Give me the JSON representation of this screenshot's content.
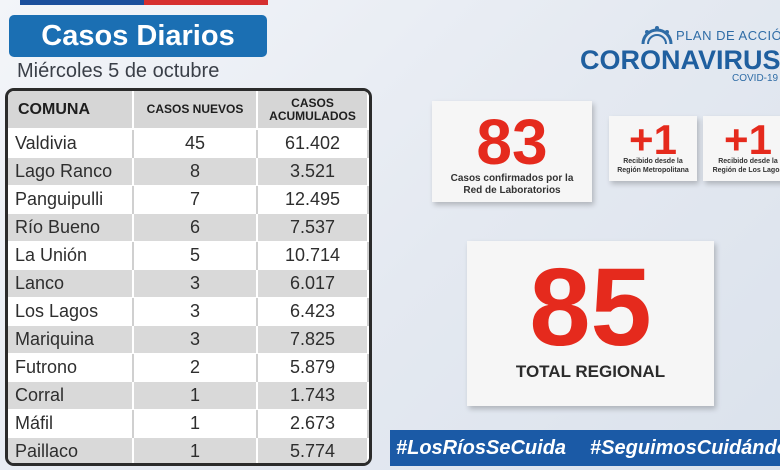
{
  "header": {
    "title": "Casos Diarios",
    "date": "Miércoles 5 de octubre"
  },
  "table": {
    "headers": {
      "comuna": "COMUNA",
      "nuevos": "CASOS NUEVOS",
      "acumulados_1": "CASOS",
      "acumulados_2": "ACUMULADOS"
    },
    "rows": [
      {
        "comuna": "Valdivia",
        "nuevos": "45",
        "acumulados": "61.402"
      },
      {
        "comuna": "Lago Ranco",
        "nuevos": "8",
        "acumulados": "3.521"
      },
      {
        "comuna": "Panguipulli",
        "nuevos": "7",
        "acumulados": "12.495"
      },
      {
        "comuna": "Río Bueno",
        "nuevos": "6",
        "acumulados": "7.537"
      },
      {
        "comuna": "La Unión",
        "nuevos": "5",
        "acumulados": "10.714"
      },
      {
        "comuna": "Lanco",
        "nuevos": "3",
        "acumulados": "6.017"
      },
      {
        "comuna": "Los Lagos",
        "nuevos": "3",
        "acumulados": "6.423"
      },
      {
        "comuna": "Mariquina",
        "nuevos": "3",
        "acumulados": "7.825"
      },
      {
        "comuna": "Futrono",
        "nuevos": "2",
        "acumulados": "5.879"
      },
      {
        "comuna": "Corral",
        "nuevos": "1",
        "acumulados": "1.743"
      },
      {
        "comuna": "Máfil",
        "nuevos": "1",
        "acumulados": "2.673"
      },
      {
        "comuna": "Paillaco",
        "nuevos": "1",
        "acumulados": "5.774"
      }
    ]
  },
  "logo": {
    "plan": "PLAN DE ACCIÓN",
    "name": "CORONAVIRUS",
    "sub": "COVID-19"
  },
  "stats": {
    "lab": {
      "value": "83",
      "line1": "Casos confirmados por la",
      "line2": "Red de Laboratorios"
    },
    "metro": {
      "value": "+1",
      "line1": "Recibido desde la",
      "line2": "Región Metropolitana"
    },
    "lagos": {
      "value": "+1",
      "line1": "Recibido desde la",
      "line2": "Región de Los Lagos"
    },
    "total": {
      "value": "85",
      "label": "TOTAL REGIONAL"
    }
  },
  "hashtags": [
    "#LosRíosSeCuida",
    "#SeguimosCuidándonos"
  ],
  "colors": {
    "title_bg": "#1b6fb3",
    "accent_red": "#e52a1d",
    "logo_blue": "#1f5f9f",
    "hashtag_bg": "#1b5aa6"
  }
}
